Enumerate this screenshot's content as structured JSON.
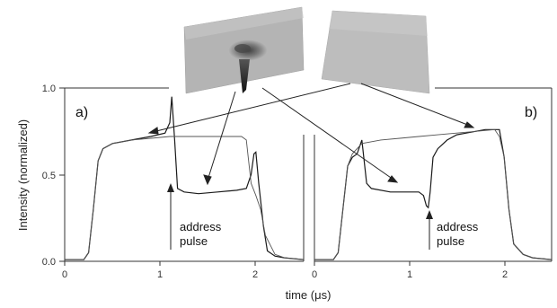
{
  "chart_data": [
    {
      "type": "line",
      "panel_label": "a)",
      "ylabel": "Intensity (normalized)",
      "xlabel": "time (μs)",
      "xlim": [
        0,
        2.5
      ],
      "ylim": [
        0,
        1.0
      ],
      "xticks": [
        "0",
        "1",
        "2"
      ],
      "yticks": [
        "0.0",
        "0.5",
        "1.0"
      ],
      "annotation": [
        "address",
        "pulse"
      ],
      "series": [
        {
          "x": [
            0,
            0.2,
            0.25,
            0.3,
            0.35,
            0.4,
            0.5,
            0.7,
            0.9,
            1.05,
            1.1,
            1.12,
            1.15,
            1.18,
            1.25,
            1.4,
            1.6,
            1.8,
            1.9,
            1.95,
            1.98,
            2.0,
            2.03,
            2.08,
            2.12,
            2.2,
            2.3,
            2.5
          ],
          "values": [
            0.01,
            0.01,
            0.05,
            0.3,
            0.58,
            0.65,
            0.68,
            0.7,
            0.72,
            0.74,
            0.8,
            0.95,
            0.7,
            0.42,
            0.4,
            0.39,
            0.4,
            0.41,
            0.42,
            0.5,
            0.62,
            0.63,
            0.45,
            0.2,
            0.06,
            0.03,
            0.02,
            0.01
          ]
        },
        {
          "x": [
            0,
            0.2,
            0.25,
            0.3,
            0.35,
            0.4,
            0.5,
            0.7,
            0.9,
            1.1,
            1.3,
            1.5,
            1.7,
            1.85,
            1.9,
            1.92,
            1.95,
            2.0,
            2.05,
            2.1,
            2.2,
            2.3,
            2.5
          ],
          "values": [
            0.01,
            0.01,
            0.05,
            0.3,
            0.58,
            0.65,
            0.68,
            0.7,
            0.71,
            0.72,
            0.72,
            0.72,
            0.72,
            0.72,
            0.7,
            0.6,
            0.45,
            0.38,
            0.3,
            0.15,
            0.04,
            0.02,
            0.01
          ]
        }
      ]
    },
    {
      "type": "line",
      "panel_label": "b)",
      "xlim": [
        0,
        2.5
      ],
      "ylim": [
        0,
        1.0
      ],
      "xticks": [
        "0",
        "1",
        "2"
      ],
      "annotation": [
        "address",
        "pulse"
      ],
      "series": [
        {
          "x": [
            0,
            0.2,
            0.25,
            0.3,
            0.35,
            0.4,
            0.45,
            0.5,
            0.55,
            0.6,
            0.8,
            1.0,
            1.1,
            1.15,
            1.18,
            1.2,
            1.22,
            1.25,
            1.3,
            1.4,
            1.5,
            1.6,
            1.8,
            1.95,
            2.0,
            2.05,
            2.1,
            2.2,
            2.3,
            2.5
          ],
          "values": [
            0.01,
            0.01,
            0.05,
            0.3,
            0.55,
            0.6,
            0.62,
            0.7,
            0.45,
            0.42,
            0.4,
            0.4,
            0.4,
            0.38,
            0.32,
            0.31,
            0.4,
            0.6,
            0.65,
            0.7,
            0.73,
            0.74,
            0.76,
            0.76,
            0.6,
            0.3,
            0.1,
            0.04,
            0.02,
            0.01
          ]
        },
        {
          "x": [
            0,
            0.2,
            0.25,
            0.3,
            0.35,
            0.4,
            0.5,
            0.7,
            0.9,
            1.1,
            1.3,
            1.5,
            1.7,
            1.9,
            1.95,
            2.0,
            2.05,
            2.1,
            2.2,
            2.3,
            2.5
          ],
          "values": [
            0.01,
            0.01,
            0.05,
            0.3,
            0.55,
            0.62,
            0.68,
            0.7,
            0.71,
            0.72,
            0.73,
            0.74,
            0.75,
            0.76,
            0.72,
            0.6,
            0.3,
            0.1,
            0.04,
            0.02,
            0.01
          ]
        }
      ]
    }
  ],
  "colors": {
    "primary_trace": "#1a1a1a",
    "secondary_trace": "#555555",
    "axis": "#333333",
    "surface_light": "#c4c4c4",
    "surface_dark": "#9a9a9a"
  }
}
